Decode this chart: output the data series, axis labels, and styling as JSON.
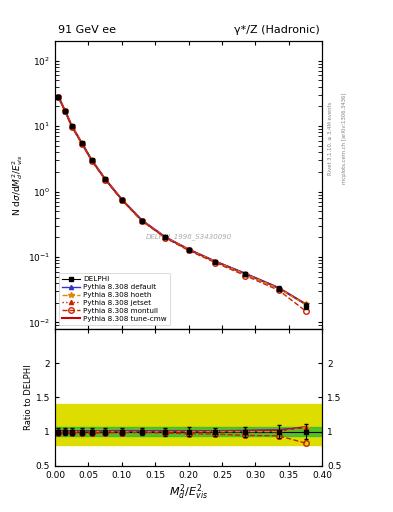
{
  "title_left": "91 GeV ee",
  "title_right": "γ*/Z (Hadronic)",
  "ylabel_main": "N dσ/dM²_d/E²_vis",
  "ylabel_ratio": "Ratio to DELPHI",
  "xlabel": "M²_d/E²_vis",
  "watermark": "DELPHI_1996_S3430090",
  "right_label_top": "Rivet 3.1.10, ≥ 3.4M events",
  "right_label_bottom": "mcplots.cern.ch [arXiv:1306.3436]",
  "x_data": [
    0.005,
    0.015,
    0.025,
    0.04,
    0.055,
    0.075,
    0.1,
    0.13,
    0.165,
    0.2,
    0.24,
    0.285,
    0.335,
    0.375
  ],
  "delphi_y": [
    28.0,
    17.0,
    10.0,
    5.5,
    3.0,
    1.55,
    0.75,
    0.36,
    0.2,
    0.13,
    0.085,
    0.055,
    0.033,
    0.018
  ],
  "delphi_err": [
    1.5,
    0.9,
    0.5,
    0.28,
    0.15,
    0.08,
    0.04,
    0.02,
    0.012,
    0.008,
    0.005,
    0.004,
    0.003,
    0.002
  ],
  "pythia_default_y": [
    28.5,
    17.2,
    10.1,
    5.55,
    3.02,
    1.56,
    0.76,
    0.365,
    0.202,
    0.131,
    0.086,
    0.056,
    0.034,
    0.019
  ],
  "pythia_hoeth_y": [
    28.0,
    17.0,
    10.0,
    5.5,
    3.0,
    1.55,
    0.75,
    0.36,
    0.2,
    0.13,
    0.085,
    0.055,
    0.033,
    0.019
  ],
  "pythia_jetset_y": [
    28.2,
    17.1,
    10.05,
    5.52,
    3.01,
    1.555,
    0.755,
    0.362,
    0.201,
    0.131,
    0.086,
    0.056,
    0.034,
    0.019
  ],
  "pythia_montull_y": [
    27.5,
    16.8,
    9.85,
    5.4,
    2.94,
    1.52,
    0.74,
    0.356,
    0.196,
    0.126,
    0.082,
    0.052,
    0.031,
    0.015
  ],
  "pythia_cmw_y": [
    28.3,
    17.15,
    10.08,
    5.53,
    3.015,
    1.558,
    0.758,
    0.363,
    0.2015,
    0.1305,
    0.0855,
    0.0555,
    0.0335,
    0.0192
  ],
  "ratio_default": [
    1.018,
    1.012,
    1.01,
    1.009,
    1.007,
    1.006,
    1.013,
    1.014,
    1.01,
    1.008,
    1.012,
    1.018,
    1.03,
    1.056
  ],
  "ratio_hoeth": [
    1.0,
    1.0,
    1.0,
    1.0,
    1.0,
    1.0,
    1.0,
    1.0,
    1.0,
    1.0,
    1.0,
    1.0,
    1.0,
    1.056
  ],
  "ratio_jetset": [
    1.007,
    1.006,
    1.005,
    1.004,
    1.003,
    1.003,
    1.007,
    1.006,
    1.005,
    1.008,
    1.012,
    1.018,
    1.03,
    1.056
  ],
  "ratio_montull": [
    0.982,
    0.988,
    0.985,
    0.982,
    0.98,
    0.981,
    0.987,
    0.989,
    0.98,
    0.969,
    0.965,
    0.945,
    0.939,
    0.833
  ],
  "ratio_cmw": [
    1.011,
    1.009,
    1.008,
    1.006,
    1.005,
    1.005,
    1.011,
    1.008,
    1.008,
    1.004,
    1.006,
    1.009,
    1.015,
    1.067
  ],
  "green_band_lo": 0.93,
  "green_band_hi": 1.07,
  "yellow_band_lo": 0.8,
  "yellow_band_hi": 1.4,
  "ylim_main": [
    0.008,
    200
  ],
  "ylim_ratio": [
    0.5,
    2.5
  ],
  "xlim": [
    0.0,
    0.4
  ],
  "yticks_ratio": [
    0.5,
    1.0,
    1.5,
    2.0
  ],
  "ytick_labels_ratio": [
    "0.5",
    "1",
    "1.5",
    "2"
  ],
  "color_default": "#3333cc",
  "color_hoeth": "#dd8800",
  "color_jetset": "#cc2200",
  "color_montull": "#cc2200",
  "color_cmw": "#cc0000",
  "green_color": "#33bb33",
  "yellow_color": "#dddd00"
}
